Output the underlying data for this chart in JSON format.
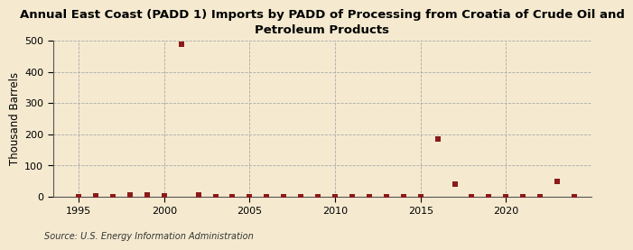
{
  "title": "Annual East Coast (PADD 1) Imports by PADD of Processing from Croatia of Crude Oil and\nPetroleum Products",
  "ylabel": "Thousand Barrels",
  "source": "Source: U.S. Energy Information Administration",
  "background_color": "#f5ead0",
  "data_points": [
    {
      "year": 1995,
      "value": 0
    },
    {
      "year": 1996,
      "value": 3
    },
    {
      "year": 1997,
      "value": 0
    },
    {
      "year": 1998,
      "value": 4
    },
    {
      "year": 1999,
      "value": 4
    },
    {
      "year": 2000,
      "value": 3
    },
    {
      "year": 2001,
      "value": 490
    },
    {
      "year": 2002,
      "value": 5
    },
    {
      "year": 2003,
      "value": 0
    },
    {
      "year": 2004,
      "value": 0
    },
    {
      "year": 2005,
      "value": 0
    },
    {
      "year": 2006,
      "value": 0
    },
    {
      "year": 2007,
      "value": 0
    },
    {
      "year": 2008,
      "value": 0
    },
    {
      "year": 2009,
      "value": 0
    },
    {
      "year": 2010,
      "value": 0
    },
    {
      "year": 2011,
      "value": 0
    },
    {
      "year": 2012,
      "value": 0
    },
    {
      "year": 2013,
      "value": 0
    },
    {
      "year": 2014,
      "value": 0
    },
    {
      "year": 2015,
      "value": 0
    },
    {
      "year": 2016,
      "value": 185
    },
    {
      "year": 2017,
      "value": 40
    },
    {
      "year": 2018,
      "value": 0
    },
    {
      "year": 2019,
      "value": 0
    },
    {
      "year": 2020,
      "value": 0
    },
    {
      "year": 2021,
      "value": 0
    },
    {
      "year": 2022,
      "value": 0
    },
    {
      "year": 2023,
      "value": 48
    },
    {
      "year": 2024,
      "value": 0
    }
  ],
  "marker_color": "#8b1a1a",
  "marker_size": 16,
  "ylim": [
    0,
    500
  ],
  "yticks": [
    0,
    100,
    200,
    300,
    400,
    500
  ],
  "xlim": [
    1993.5,
    2025
  ],
  "xticks": [
    1995,
    2000,
    2005,
    2010,
    2015,
    2020
  ],
  "grid_color": "#aaaaaa",
  "title_fontsize": 9.5,
  "axis_fontsize": 8.5,
  "tick_fontsize": 8,
  "source_fontsize": 7
}
